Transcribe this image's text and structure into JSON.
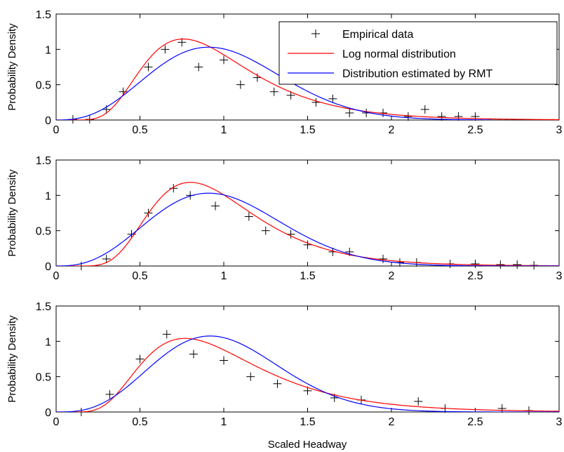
{
  "figure": {
    "xlabel": "Scaled Headway"
  },
  "legend": {
    "entries": [
      {
        "label": "Empirical data",
        "kind": "marker"
      },
      {
        "label": "Log normal distribution",
        "kind": "line",
        "color": "#ff0000"
      },
      {
        "label": "Distribution estimated by RMT",
        "kind": "line",
        "color": "#0000ff"
      }
    ]
  },
  "chart_data": [
    {
      "type": "line",
      "ylabel": "Probability Density",
      "xlim": [
        0,
        3
      ],
      "ylim": [
        0,
        1.5
      ],
      "xticks": [
        0,
        0.5,
        1,
        1.5,
        2,
        2.5,
        3
      ],
      "yticks": [
        0,
        0.5,
        1,
        1.5
      ],
      "legend_position": "top-right",
      "series": [
        {
          "name": "Empirical data",
          "style": "marker",
          "color": "#000000",
          "points": [
            [
              0.1,
              0.01
            ],
            [
              0.2,
              0.01
            ],
            [
              0.3,
              0.15
            ],
            [
              0.4,
              0.4
            ],
            [
              0.55,
              0.75
            ],
            [
              0.65,
              1.0
            ],
            [
              0.75,
              1.1
            ],
            [
              0.85,
              0.75
            ],
            [
              1.0,
              0.85
            ],
            [
              1.1,
              0.5
            ],
            [
              1.2,
              0.6
            ],
            [
              1.3,
              0.4
            ],
            [
              1.4,
              0.35
            ],
            [
              1.55,
              0.25
            ],
            [
              1.65,
              0.3
            ],
            [
              1.75,
              0.1
            ],
            [
              1.85,
              0.1
            ],
            [
              1.95,
              0.1
            ],
            [
              2.1,
              0.05
            ],
            [
              2.2,
              0.15
            ],
            [
              2.3,
              0.05
            ],
            [
              2.4,
              0.05
            ],
            [
              2.5,
              0.05
            ]
          ]
        },
        {
          "name": "Log normal distribution",
          "style": "line",
          "color": "#ff0000",
          "model": "lognormal",
          "mu": -0.1,
          "sigma": 0.42,
          "x_start": 0.0,
          "x_end": 3.0
        },
        {
          "name": "Distribution estimated by RMT",
          "style": "line",
          "color": "#0000ff",
          "model": "rmt",
          "alpha": 2.6,
          "x_start": 0.0,
          "x_end": 2.6
        }
      ]
    },
    {
      "type": "line",
      "ylabel": "Probability Density",
      "xlim": [
        0,
        3
      ],
      "ylim": [
        0,
        1.5
      ],
      "xticks": [
        0,
        0.5,
        1,
        1.5,
        2,
        2.5,
        3
      ],
      "yticks": [
        0,
        0.5,
        1,
        1.5
      ],
      "series": [
        {
          "name": "Empirical data",
          "style": "marker",
          "color": "#000000",
          "points": [
            [
              0.15,
              0.0
            ],
            [
              0.3,
              0.1
            ],
            [
              0.45,
              0.45
            ],
            [
              0.55,
              0.75
            ],
            [
              0.7,
              1.1
            ],
            [
              0.8,
              1.0
            ],
            [
              0.95,
              0.85
            ],
            [
              1.15,
              0.7
            ],
            [
              1.25,
              0.5
            ],
            [
              1.4,
              0.45
            ],
            [
              1.5,
              0.3
            ],
            [
              1.65,
              0.2
            ],
            [
              1.75,
              0.2
            ],
            [
              1.95,
              0.1
            ],
            [
              2.05,
              0.05
            ],
            [
              2.15,
              0.05
            ],
            [
              2.35,
              0.03
            ],
            [
              2.5,
              0.03
            ],
            [
              2.65,
              0.02
            ],
            [
              2.75,
              0.02
            ],
            [
              2.85,
              0.01
            ]
          ]
        },
        {
          "name": "Log normal distribution",
          "style": "line",
          "color": "#ff0000",
          "model": "lognormal",
          "mu": -0.07,
          "sigma": 0.39,
          "x_start": 0.0,
          "x_end": 3.0
        },
        {
          "name": "Distribution estimated by RMT",
          "style": "line",
          "color": "#0000ff",
          "model": "rmt",
          "alpha": 2.6,
          "x_start": 0.0,
          "x_end": 3.0
        }
      ]
    },
    {
      "type": "line",
      "ylabel": "Probability Density",
      "xlim": [
        0,
        3
      ],
      "ylim": [
        0,
        1.5
      ],
      "xticks": [
        0,
        0.5,
        1,
        1.5,
        2,
        2.5,
        3
      ],
      "yticks": [
        0,
        0.5,
        1,
        1.5
      ],
      "series": [
        {
          "name": "Empirical data",
          "style": "marker",
          "color": "#000000",
          "points": [
            [
              0.15,
              0.0
            ],
            [
              0.32,
              0.25
            ],
            [
              0.5,
              0.75
            ],
            [
              0.66,
              1.1
            ],
            [
              0.82,
              0.82
            ],
            [
              1.0,
              0.73
            ],
            [
              1.16,
              0.5
            ],
            [
              1.32,
              0.4
            ],
            [
              1.5,
              0.3
            ],
            [
              1.66,
              0.2
            ],
            [
              1.82,
              0.17
            ],
            [
              2.16,
              0.15
            ],
            [
              2.32,
              0.05
            ],
            [
              2.66,
              0.05
            ],
            [
              2.82,
              0.02
            ]
          ]
        },
        {
          "name": "Log normal distribution",
          "style": "line",
          "color": "#ff0000",
          "model": "lognormal",
          "mu": -0.06,
          "sigma": 0.45,
          "x_start": 0.0,
          "x_end": 3.0
        },
        {
          "name": "Distribution estimated by RMT",
          "style": "line",
          "color": "#0000ff",
          "model": "rmt",
          "alpha": 2.9,
          "x_start": 0.0,
          "x_end": 3.0
        }
      ]
    }
  ]
}
